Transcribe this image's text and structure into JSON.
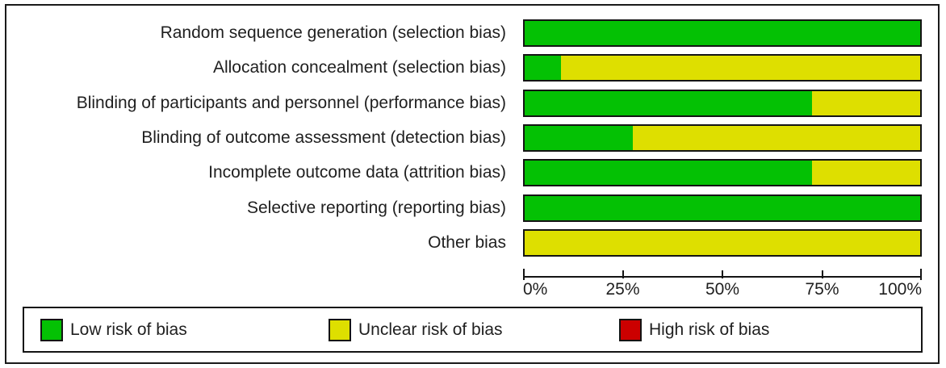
{
  "chart_data": {
    "type": "bar",
    "orientation": "horizontal",
    "stacked": true,
    "categories": [
      "Random sequence generation (selection bias)",
      "Allocation concealment (selection bias)",
      "Blinding of participants and personnel (performance bias)",
      "Blinding of outcome assessment (detection bias)",
      "Incomplete outcome data (attrition bias)",
      "Selective reporting (reporting bias)",
      "Other bias"
    ],
    "series": [
      {
        "name": "Low risk of bias",
        "color": "#04c104",
        "values": [
          100,
          9.1,
          72.7,
          27.3,
          72.7,
          100,
          0
        ]
      },
      {
        "name": "Unclear risk of bias",
        "color": "#dedf00",
        "values": [
          0,
          90.9,
          27.3,
          72.7,
          27.3,
          0,
          100
        ]
      },
      {
        "name": "High risk of bias",
        "color": "#cc0000",
        "values": [
          0,
          0,
          0,
          0,
          0,
          0,
          0
        ]
      }
    ],
    "xlim": [
      0,
      100
    ],
    "x_ticks": [
      0,
      25,
      50,
      75,
      100
    ],
    "x_tick_labels": [
      "0%",
      "25%",
      "50%",
      "75%",
      "100%"
    ],
    "grid": false,
    "legend_position": "bottom"
  },
  "legend": {
    "items": [
      {
        "label": "Low risk of bias",
        "color": "#04c104"
      },
      {
        "label": "Unclear risk of bias",
        "color": "#dedf00"
      },
      {
        "label": "High risk of bias",
        "color": "#cc0000"
      }
    ]
  },
  "colors": {
    "low": "#04c104",
    "unclear": "#dedf00",
    "high": "#cc0000",
    "border": "#141414",
    "background": "#ffffff"
  }
}
